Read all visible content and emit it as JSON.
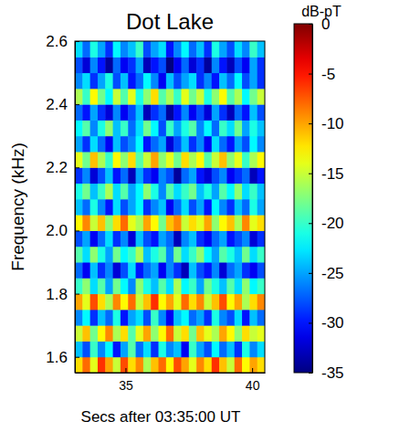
{
  "chart_data": {
    "type": "heatmap",
    "title": "Dot Lake",
    "x_label": "Secs after 03:35:00 UT",
    "y_label": "Frequency (kHz)",
    "x": [
      33.15,
      33.45,
      33.75,
      34.05,
      34.35,
      34.65,
      34.95,
      35.25,
      35.55,
      35.85,
      36.15,
      36.45,
      36.75,
      37.05,
      37.35,
      37.65,
      37.95,
      38.25,
      38.55,
      38.85,
      39.15,
      39.45,
      39.75,
      40.05,
      40.35
    ],
    "y": [
      1.575,
      1.625,
      1.675,
      1.725,
      1.775,
      1.825,
      1.875,
      1.925,
      1.975,
      2.025,
      2.075,
      2.125,
      2.175,
      2.225,
      2.275,
      2.325,
      2.375,
      2.425,
      2.475,
      2.525,
      2.575
    ],
    "z": [
      [
        -12,
        -8,
        -14,
        -6,
        -10,
        -15,
        -7,
        -12,
        -9,
        -16,
        -11,
        -8,
        -13,
        -7,
        -10,
        -14,
        -9,
        -12,
        -6,
        -11,
        -15,
        -8,
        -13,
        -10,
        -12
      ],
      [
        -24,
        -28,
        -20,
        -26,
        -22,
        -30,
        -25,
        -19,
        -27,
        -23,
        -29,
        -21,
        -26,
        -24,
        -31,
        -20,
        -25,
        -28,
        -22,
        -27,
        -24,
        -29,
        -21,
        -26,
        -23
      ],
      [
        -15,
        -11,
        -18,
        -13,
        -9,
        -16,
        -12,
        -19,
        -14,
        -10,
        -17,
        -13,
        -8,
        -15,
        -12,
        -18,
        -11,
        -14,
        -16,
        -10,
        -13,
        -17,
        -12,
        -15,
        -14
      ],
      [
        -26,
        -22,
        -29,
        -24,
        -27,
        -21,
        -30,
        -25,
        -23,
        -28,
        -20,
        -26,
        -31,
        -24,
        -22,
        -27,
        -25,
        -29,
        -21,
        -26,
        -28,
        -23,
        -30,
        -24,
        -27
      ],
      [
        -10,
        -14,
        -7,
        -12,
        -16,
        -9,
        -13,
        -8,
        -15,
        -11,
        -6,
        -13,
        -10,
        -14,
        -8,
        -12,
        -9,
        -15,
        -11,
        -7,
        -13,
        -10,
        -16,
        -12,
        -9
      ],
      [
        -20,
        -17,
        -23,
        -19,
        -25,
        -18,
        -22,
        -26,
        -17,
        -21,
        -24,
        -19,
        -23,
        -16,
        -22,
        -20,
        -25,
        -18,
        -21,
        -24,
        -19,
        -23,
        -17,
        -22,
        -20
      ],
      [
        -27,
        -31,
        -24,
        -29,
        -26,
        -32,
        -28,
        -23,
        -30,
        -27,
        -25,
        -31,
        -26,
        -29,
        -33,
        -24,
        -28,
        -30,
        -26,
        -32,
        -27,
        -25,
        -29,
        -31,
        -28
      ],
      [
        -19,
        -23,
        -17,
        -21,
        -25,
        -18,
        -22,
        -20,
        -16,
        -24,
        -21,
        -19,
        -26,
        -18,
        -23,
        -20,
        -17,
        -22,
        -25,
        -19,
        -21,
        -24,
        -18,
        -23,
        -20
      ],
      [
        -28,
        -25,
        -31,
        -27,
        -23,
        -29,
        -26,
        -32,
        -24,
        -28,
        -30,
        -25,
        -27,
        -33,
        -26,
        -24,
        -29,
        -31,
        -27,
        -25,
        -30,
        -28,
        -26,
        -32,
        -29
      ],
      [
        -13,
        -9,
        -15,
        -11,
        -17,
        -12,
        -8,
        -14,
        -16,
        -10,
        -13,
        -18,
        -11,
        -9,
        -15,
        -12,
        -14,
        -10,
        -17,
        -13,
        -11,
        -16,
        -9,
        -14,
        -12
      ],
      [
        -24,
        -27,
        -21,
        -26,
        -30,
        -23,
        -28,
        -25,
        -22,
        -29,
        -26,
        -24,
        -31,
        -27,
        -23,
        -28,
        -25,
        -30,
        -22,
        -26,
        -29,
        -24,
        -27,
        -21,
        -25
      ],
      [
        -21,
        -18,
        -24,
        -20,
        -16,
        -23,
        -19,
        -25,
        -22,
        -17,
        -21,
        -26,
        -19,
        -23,
        -20,
        -18,
        -24,
        -21,
        -25,
        -19,
        -22,
        -17,
        -23,
        -20,
        -24
      ],
      [
        -29,
        -26,
        -32,
        -28,
        -24,
        -30,
        -27,
        -33,
        -25,
        -29,
        -31,
        -26,
        -28,
        -34,
        -27,
        -25,
        -30,
        -32,
        -28,
        -26,
        -31,
        -29,
        -27,
        -33,
        -30
      ],
      [
        -14,
        -18,
        -11,
        -16,
        -20,
        -13,
        -17,
        -12,
        -19,
        -15,
        -10,
        -17,
        -14,
        -18,
        -12,
        -16,
        -13,
        -19,
        -15,
        -11,
        -17,
        -14,
        -20,
        -16,
        -13
      ],
      [
        -25,
        -29,
        -23,
        -27,
        -31,
        -24,
        -28,
        -26,
        -22,
        -30,
        -27,
        -25,
        -32,
        -28,
        -24,
        -29,
        -26,
        -31,
        -23,
        -27,
        -30,
        -25,
        -28,
        -22,
        -26
      ],
      [
        -22,
        -19,
        -26,
        -21,
        -17,
        -24,
        -20,
        -27,
        -23,
        -18,
        -22,
        -28,
        -20,
        -25,
        -21,
        -19,
        -26,
        -22,
        -27,
        -20,
        -23,
        -18,
        -25,
        -21,
        -24
      ],
      [
        -27,
        -30,
        -25,
        -29,
        -32,
        -26,
        -31,
        -28,
        -24,
        -33,
        -29,
        -27,
        -34,
        -30,
        -26,
        -31,
        -28,
        -32,
        -25,
        -29,
        -33,
        -27,
        -30,
        -24,
        -28
      ],
      [
        -16,
        -20,
        -13,
        -18,
        -22,
        -15,
        -19,
        -14,
        -21,
        -17,
        -12,
        -19,
        -16,
        -20,
        -14,
        -18,
        -15,
        -21,
        -17,
        -13,
        -19,
        -16,
        -22,
        -18,
        -15
      ],
      [
        -26,
        -23,
        -29,
        -25,
        -21,
        -28,
        -24,
        -30,
        -27,
        -22,
        -26,
        -31,
        -24,
        -28,
        -25,
        -23,
        -29,
        -26,
        -30,
        -24,
        -27,
        -22,
        -28,
        -25,
        -29
      ],
      [
        -28,
        -32,
        -26,
        -30,
        -34,
        -27,
        -31,
        -29,
        -25,
        -33,
        -30,
        -28,
        -35,
        -31,
        -27,
        -32,
        -29,
        -34,
        -26,
        -30,
        -33,
        -28,
        -31,
        -25,
        -29
      ],
      [
        -23,
        -27,
        -21,
        -25,
        -29,
        -22,
        -26,
        -24,
        -20,
        -28,
        -25,
        -23,
        -30,
        -26,
        -22,
        -27,
        -24,
        -29,
        -21,
        -25,
        -28,
        -23,
        -26,
        -20,
        -24
      ]
    ],
    "xlim": [
      33,
      40.5
    ],
    "ylim": [
      1.55,
      2.6
    ],
    "xticks": [
      35,
      40
    ],
    "yticks": [
      1.6,
      1.8,
      {
        "value": 2,
        "label": "2.0"
      },
      2.2,
      2.4,
      2.6
    ],
    "colorbar": {
      "label": "dB-pT",
      "range": [
        -35,
        0
      ],
      "ticks": [
        0,
        -5,
        -10,
        -15,
        -20,
        -25,
        -30,
        -35
      ]
    }
  }
}
